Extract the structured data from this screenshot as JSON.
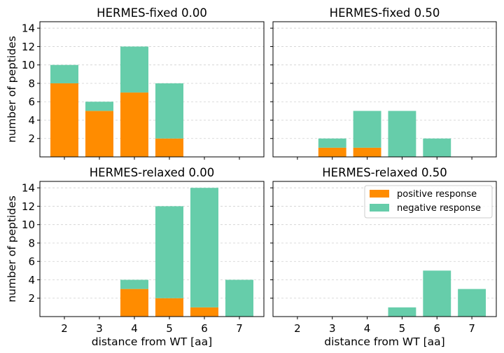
{
  "colors": {
    "positive": "#ff8c00",
    "negative": "#66cdaa",
    "grid": "#d0d0d0",
    "axis": "#000000"
  },
  "legend": {
    "positive_label": "positive response",
    "negative_label": "negative response"
  },
  "chart_data": [
    {
      "type": "bar",
      "title": "HERMES-fixed 0.00",
      "xlabel": "",
      "ylabel": "number of peptides",
      "categories": [
        2,
        3,
        4,
        5,
        6,
        7
      ],
      "series": [
        {
          "name": "positive response",
          "values": [
            8,
            5,
            7,
            2,
            0,
            0
          ]
        },
        {
          "name": "negative response",
          "values": [
            2,
            1,
            5,
            6,
            0,
            0
          ]
        }
      ],
      "stacked": true,
      "ylim": [
        0,
        14.7
      ],
      "yticks": [
        2,
        4,
        6,
        8,
        10,
        12,
        14
      ],
      "xticklabels_visible": false,
      "grid": "y-dashed"
    },
    {
      "type": "bar",
      "title": "HERMES-fixed 0.50",
      "xlabel": "",
      "ylabel": "",
      "categories": [
        2,
        3,
        4,
        5,
        6,
        7
      ],
      "series": [
        {
          "name": "positive response",
          "values": [
            0,
            1,
            1,
            0,
            0,
            0
          ]
        },
        {
          "name": "negative response",
          "values": [
            0,
            1,
            4,
            5,
            2,
            0
          ]
        }
      ],
      "stacked": true,
      "ylim": [
        0,
        14.7
      ],
      "yticks": [
        2,
        4,
        6,
        8,
        10,
        12,
        14
      ],
      "xticklabels_visible": false,
      "grid": "y-dashed"
    },
    {
      "type": "bar",
      "title": "HERMES-relaxed 0.00",
      "xlabel": "distance from WT [aa]",
      "ylabel": "number of peptides",
      "categories": [
        2,
        3,
        4,
        5,
        6,
        7
      ],
      "series": [
        {
          "name": "positive response",
          "values": [
            0,
            0,
            3,
            2,
            1,
            0
          ]
        },
        {
          "name": "negative response",
          "values": [
            0,
            0,
            1,
            10,
            13,
            4
          ]
        }
      ],
      "stacked": true,
      "ylim": [
        0,
        14.7
      ],
      "yticks": [
        2,
        4,
        6,
        8,
        10,
        12,
        14
      ],
      "xticklabels_visible": true,
      "grid": "y-dashed"
    },
    {
      "type": "bar",
      "title": "HERMES-relaxed 0.50",
      "xlabel": "distance from WT [aa]",
      "ylabel": "",
      "categories": [
        2,
        3,
        4,
        5,
        6,
        7
      ],
      "series": [
        {
          "name": "positive response",
          "values": [
            0,
            0,
            0,
            0,
            0,
            0
          ]
        },
        {
          "name": "negative response",
          "values": [
            0,
            0,
            0,
            1,
            5,
            3
          ]
        }
      ],
      "stacked": true,
      "ylim": [
        0,
        14.7
      ],
      "yticks": [
        2,
        4,
        6,
        8,
        10,
        12,
        14
      ],
      "xticklabels_visible": true,
      "grid": "y-dashed",
      "legend": "top-right"
    }
  ]
}
